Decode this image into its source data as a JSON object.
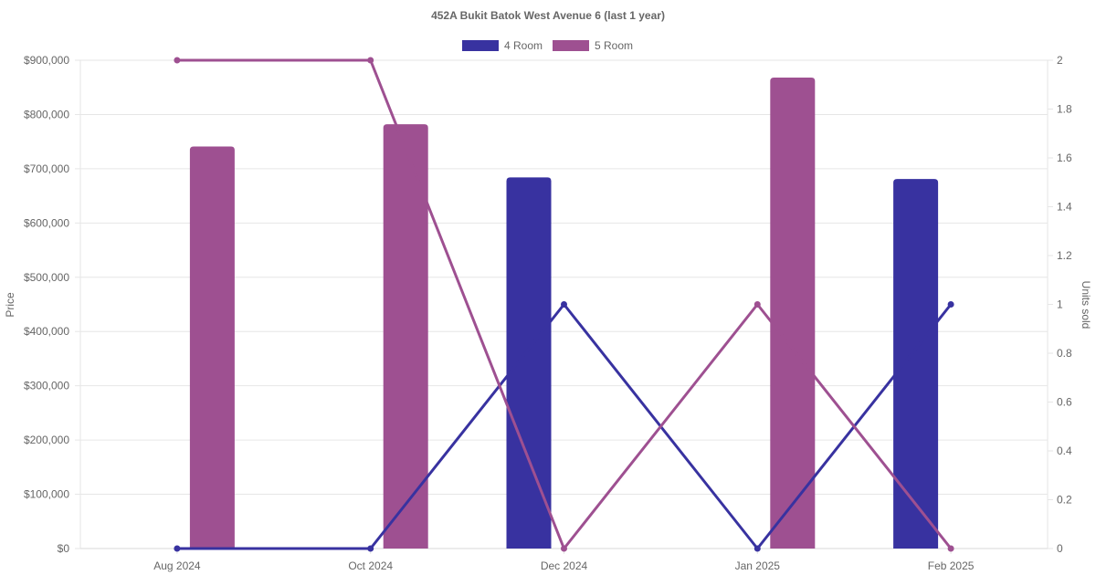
{
  "chart_data": {
    "type": "bar",
    "title": "452A Bukit Batok West Avenue 6 (last 1 year)",
    "categories": [
      "Aug 2024",
      "Oct 2024",
      "Dec 2024",
      "Jan 2025",
      "Feb 2025"
    ],
    "ylabel": "Price",
    "y2label": "Units sold",
    "ylim": [
      0,
      900000
    ],
    "y2lim": [
      0,
      2
    ],
    "yticks": [
      "$0",
      "$100,000",
      "$200,000",
      "$300,000",
      "$400,000",
      "$500,000",
      "$600,000",
      "$700,000",
      "$800,000",
      "$900,000"
    ],
    "y2ticks": [
      "0",
      "0.2",
      "0.4",
      "0.6",
      "0.8",
      "1",
      "1.2",
      "1.4",
      "1.6",
      "1.8",
      "2"
    ],
    "grid": true,
    "legend_position": "top-center",
    "series": [
      {
        "name": "4 Room",
        "color": "#3832a0",
        "price": [
          null,
          null,
          684000,
          null,
          681000
        ],
        "units_sold": [
          0,
          0,
          1,
          0,
          1
        ]
      },
      {
        "name": "5 Room",
        "color": "#9e5091",
        "price": [
          741000,
          782000,
          null,
          868000,
          null
        ],
        "units_sold": [
          2,
          2,
          0,
          1,
          0
        ]
      }
    ]
  }
}
